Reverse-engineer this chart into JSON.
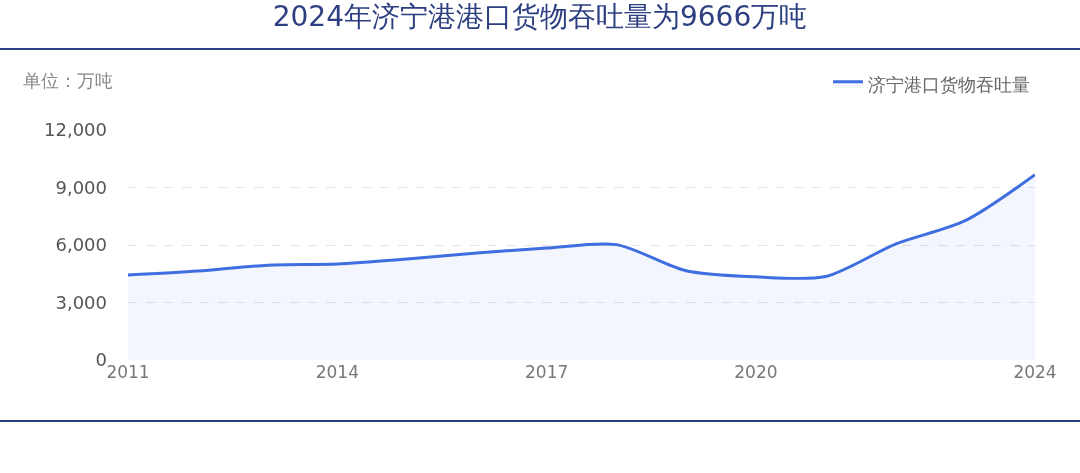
{
  "chart_data": {
    "type": "area",
    "title": "2024年济宁港港口货物吞吐量为9666万吨",
    "ylabel": "单位：万吨",
    "categories": [
      "2011",
      null,
      null,
      "2014",
      null,
      null,
      "2017",
      null,
      null,
      "2020",
      null,
      null,
      null,
      "2024"
    ],
    "series": [
      {
        "name": "济宁港口货物吞吐量",
        "color": "#3f6ee0",
        "values": [
          4430,
          4640,
          4950,
          5010,
          5270,
          5580,
          5840,
          6020,
          4660,
          4340,
          4360,
          6050,
          7270,
          9666
        ]
      }
    ],
    "ylim": [
      0,
      12000
    ],
    "yticks": [
      {
        "value": 0,
        "label": "0"
      },
      {
        "value": 3000,
        "label": "3,000"
      },
      {
        "value": 6000,
        "label": "6,000"
      },
      {
        "value": 9000,
        "label": "9,000"
      },
      {
        "value": 12000,
        "label": "12,000"
      }
    ],
    "grid": "y",
    "legend": "top right",
    "marker": "none",
    "line_style": "solid"
  }
}
